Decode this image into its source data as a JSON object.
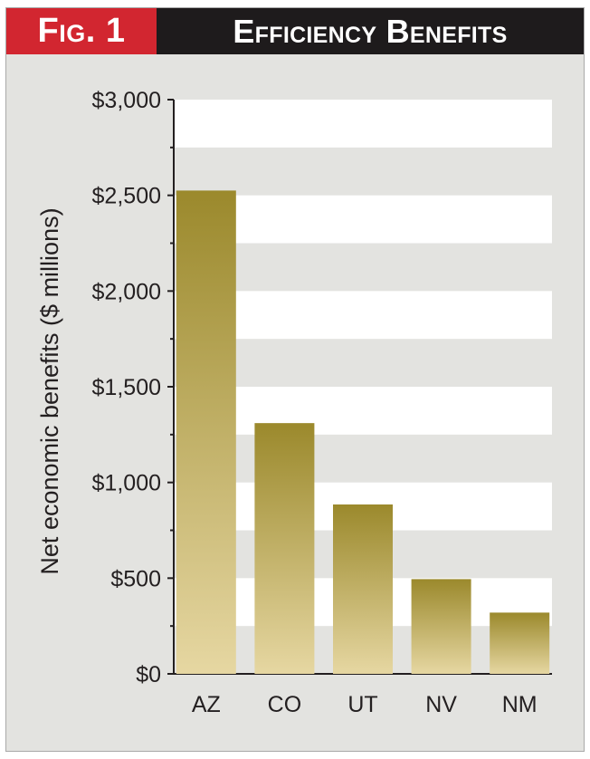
{
  "header": {
    "fig_label": "Fig. 1",
    "title": "Efficiency Benefits",
    "fig_label_color": "#d22630",
    "title_bg_color": "#1e1b1c"
  },
  "chart_data": {
    "type": "bar",
    "categories": [
      "AZ",
      "CO",
      "UT",
      "NV",
      "NM"
    ],
    "values": [
      2525,
      1310,
      885,
      495,
      320
    ],
    "title": "Efficiency Benefits",
    "xlabel": "",
    "ylabel": "Net economic benefits ($ millions)",
    "ylim": [
      0,
      3000
    ],
    "yticks": [
      0,
      500,
      1000,
      1500,
      2000,
      2500,
      3000
    ],
    "ytick_labels": [
      "$0",
      "$500",
      "$1,000",
      "$1,500",
      "$2,000",
      "$2,500",
      "$3,000"
    ],
    "grid": "alternating horizontal bands",
    "bar_color_top": "#9b892c",
    "bar_color_bottom": "#e6d7a2",
    "band_color": "#ffffff",
    "background_color": "#e3e3e0"
  }
}
